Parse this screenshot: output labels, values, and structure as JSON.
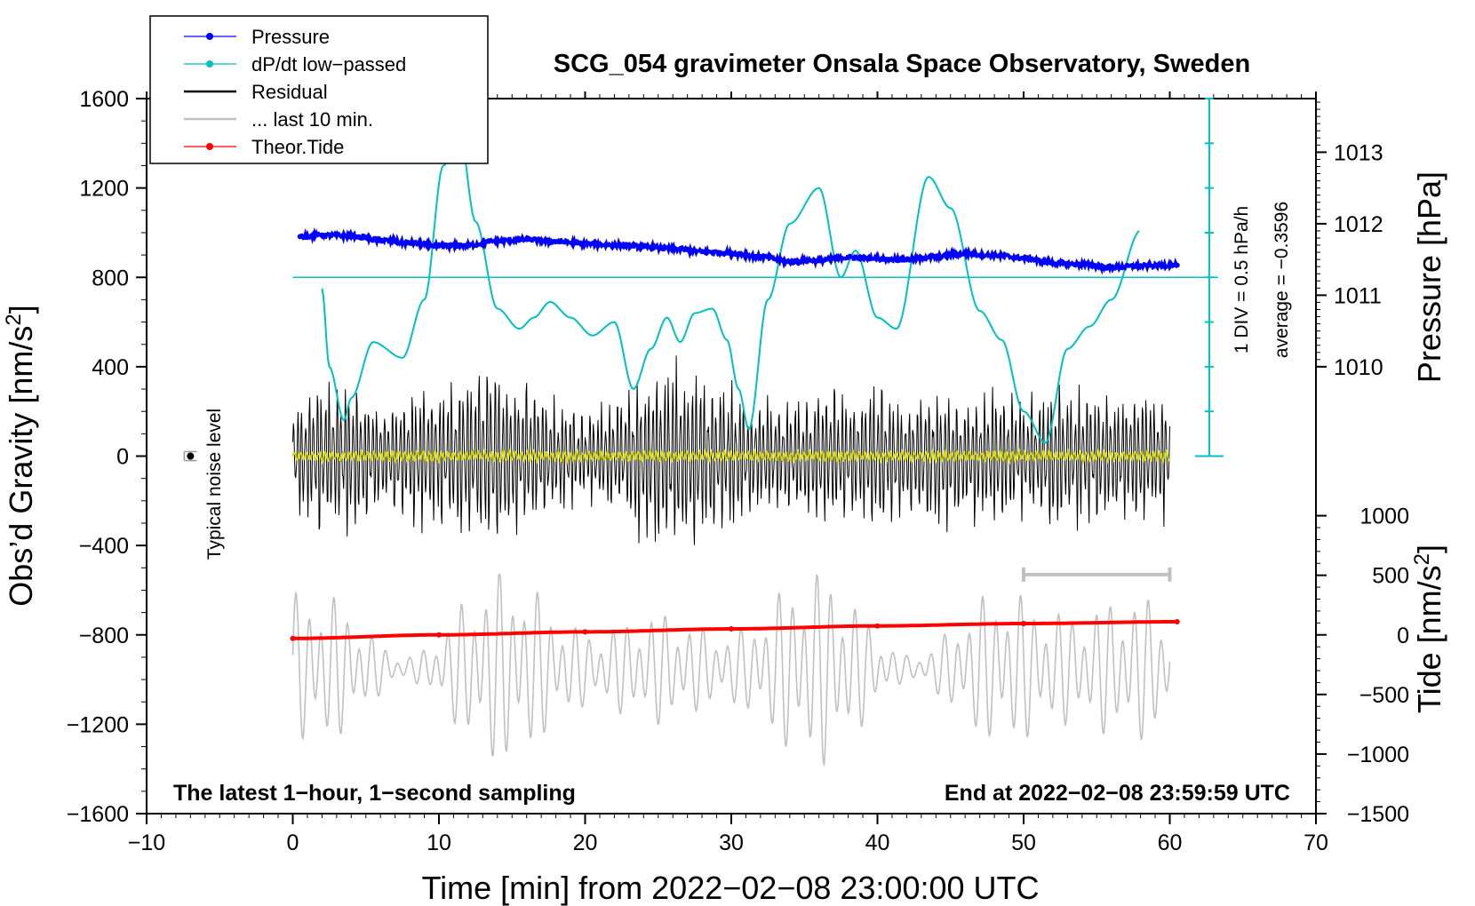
{
  "chart_data": {
    "type": "line",
    "title": "SCG_054 gravimeter Onsala Space Observatory, Sweden",
    "xlabel": "Time [min] from 2022−02−08 23:00:00 UTC",
    "xlim": [
      -10,
      70
    ],
    "x_ticks": [
      -10,
      0,
      10,
      20,
      30,
      40,
      50,
      60,
      70
    ],
    "x_tick_labels": [
      "−10",
      "0",
      "10",
      "20",
      "30",
      "40",
      "50",
      "60",
      "70"
    ],
    "left_axis": {
      "label": "Obs’d Gravity [nm/s²]",
      "ylim": [
        -1600,
        1600
      ],
      "ticks": [
        -1600,
        -1200,
        -800,
        -400,
        0,
        400,
        800,
        1200,
        1600
      ],
      "tick_labels": [
        "−1600",
        "−1200",
        "−800",
        "−400",
        "0",
        "400",
        "800",
        "1200",
        "1600"
      ]
    },
    "pressure_axis": {
      "label": "Pressure [hPa]",
      "ticks": [
        1010,
        1011,
        1012,
        1013
      ],
      "tick_labels": [
        "1010",
        "1011",
        "1012",
        "1013"
      ],
      "gravity_at_1010": 400,
      "gravity_per_hPa": 320
    },
    "tide_axis": {
      "label": "Tide [nm/s²]",
      "ticks": [
        -1500,
        -1000,
        -500,
        0,
        500,
        1000
      ],
      "tick_labels": [
        "−1500",
        "−1000",
        "−500",
        "0",
        "500",
        "1000"
      ],
      "gravity_at_0": -800,
      "gravity_per_unit": 0.5333
    },
    "dpdt_scale": {
      "label": "1 DIV = 0.5 hPa/h",
      "average_label": "average = −0.3596",
      "x": 62.7,
      "y_from": 0,
      "y_to": 1600,
      "divisions": 8
    },
    "noise_level": {
      "label": "Typical noise level",
      "x": -7,
      "y": 0,
      "err": 20
    },
    "last10_marker": {
      "from": 50,
      "to": 60,
      "y": -530
    },
    "notes": {
      "left": "The latest 1−hour, 1−second sampling",
      "right": "End at 2022−02−08 23:59:59 UTC"
    },
    "legend": {
      "position": "top-left",
      "entries": [
        {
          "label": "Pressure",
          "color": "#0000ff",
          "style": "line-dot"
        },
        {
          "label": "dP/dt low−passed",
          "color": "#00c0c0",
          "style": "line-dot"
        },
        {
          "label": "Residual",
          "color": "#000000",
          "style": "line"
        },
        {
          "label": "... last 10 min.",
          "color": "#c0c0c0",
          "style": "line"
        },
        {
          "label": "Theor.Tide",
          "color": "#ff0000",
          "style": "line-dot"
        }
      ]
    },
    "series": [
      {
        "name": "Pressure",
        "units": "hPa",
        "color": "#0000ff",
        "x": [
          0.5,
          2,
          4,
          6,
          8,
          10,
          12,
          14,
          16,
          18,
          20,
          22,
          24,
          26,
          28,
          30,
          32,
          34,
          36,
          38,
          40,
          42,
          44,
          46,
          48,
          50,
          52,
          54,
          56,
          58,
          60.5
        ],
        "y": [
          1011.82,
          1011.84,
          1011.83,
          1011.77,
          1011.73,
          1011.69,
          1011.7,
          1011.76,
          1011.78,
          1011.75,
          1011.72,
          1011.7,
          1011.68,
          1011.65,
          1011.61,
          1011.59,
          1011.54,
          1011.47,
          1011.49,
          1011.53,
          1011.51,
          1011.5,
          1011.54,
          1011.58,
          1011.56,
          1011.52,
          1011.45,
          1011.43,
          1011.39,
          1011.41,
          1011.42
        ]
      },
      {
        "name": "dP/dt low−passed",
        "units": "nm/s² scaled",
        "color": "#00c0c0",
        "x": [
          2,
          2.5,
          3.5,
          4,
          5.5,
          7.5,
          9,
          10.3,
          11.4,
          12.5,
          14,
          15.5,
          16.5,
          17.6,
          19,
          20.5,
          22,
          23.3,
          24.5,
          25.6,
          26.5,
          27.5,
          28.7,
          29.7,
          30.5,
          31.2,
          32.5,
          34,
          36,
          37.5,
          38.5,
          40,
          41.3,
          43.5,
          45,
          47,
          48.5,
          50,
          51.5,
          53,
          54.5,
          56,
          58
        ],
        "y": [
          750,
          400,
          160,
          260,
          510,
          440,
          700,
          1300,
          1450,
          1050,
          660,
          570,
          620,
          690,
          620,
          540,
          600,
          300,
          480,
          620,
          510,
          640,
          660,
          520,
          300,
          120,
          700,
          1040,
          1200,
          800,
          920,
          620,
          570,
          1250,
          1110,
          650,
          520,
          200,
          60,
          480,
          580,
          700,
          1010
        ]
      },
      {
        "name": "Residual",
        "units": "nm/s²",
        "color": "#000000",
        "envelope_x": [
          0,
          2,
          4,
          6,
          8,
          10,
          12,
          14,
          16,
          18,
          20,
          22,
          24,
          26,
          28,
          30,
          32,
          34,
          36,
          38,
          40,
          42,
          44,
          46,
          48,
          50,
          52,
          54,
          56,
          58,
          60
        ],
        "envelope_amplitude": [
          280,
          420,
          400,
          300,
          360,
          380,
          440,
          500,
          400,
          300,
          240,
          300,
          420,
          520,
          460,
          380,
          320,
          300,
          380,
          340,
          400,
          320,
          380,
          340,
          360,
          330,
          380,
          360,
          320,
          360,
          340
        ]
      },
      {
        "name": "... last 10 min.",
        "units": "nm/s²",
        "color": "#c0c0c0",
        "center": -950,
        "amplitude_range": [
          -1420,
          -530
        ]
      },
      {
        "name": "yellow trace",
        "units": "nm/s²",
        "color": "#d8d800",
        "center": 0,
        "amplitude": 25
      },
      {
        "name": "Theor.Tide",
        "units": "nm/s²",
        "color": "#ff0000",
        "x": [
          0,
          10,
          20,
          30,
          40,
          50,
          60.5
        ],
        "y": [
          -30,
          0,
          25,
          50,
          75,
          95,
          110
        ]
      }
    ]
  }
}
